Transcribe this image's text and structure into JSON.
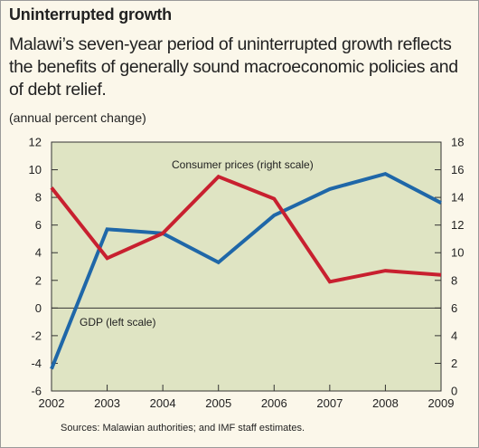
{
  "chart_data": {
    "type": "line",
    "title": "Uninterrupted growth",
    "subtitle": "Malawi’s seven-year period of uninterrupted growth reflects the benefits of generally sound macroeconomic policies and of debt relief.",
    "unit_label": "(annual percent change)",
    "source": "Sources: Malawian authorities; and IMF staff estimates.",
    "x": [
      "2002",
      "2003",
      "2004",
      "2005",
      "2006",
      "2007",
      "2008",
      "2009"
    ],
    "left_axis": {
      "range": [
        -6,
        12
      ],
      "ticks": [
        "12",
        "10",
        "8",
        "6",
        "4",
        "2",
        "0",
        "-2",
        "-4",
        "-6"
      ]
    },
    "right_axis": {
      "range": [
        0,
        18
      ],
      "ticks": [
        "18",
        "16",
        "14",
        "12",
        "10",
        "8",
        "6",
        "4",
        "2",
        "0"
      ]
    },
    "series": [
      {
        "name": "GDP (left scale)",
        "axis": "left",
        "color": "#1f67a8",
        "values": [
          -4.4,
          5.7,
          5.4,
          3.3,
          6.7,
          8.6,
          9.7,
          7.6
        ]
      },
      {
        "name": "Consumer prices (right scale)",
        "axis": "right",
        "color": "#c8202f",
        "values": [
          14.7,
          9.6,
          11.4,
          15.5,
          13.9,
          7.9,
          8.7,
          8.4
        ]
      }
    ],
    "zero_line": true,
    "plot_background": "#dfe4c3"
  }
}
